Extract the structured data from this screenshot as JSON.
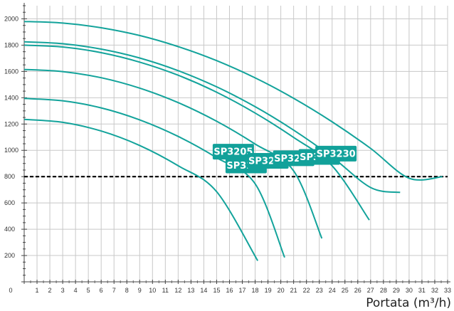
{
  "chart_data": {
    "type": "line",
    "title": "",
    "xlabel": "Portata (m³/h)",
    "ylabel": "",
    "xlim": [
      0,
      33
    ],
    "ylim": [
      0,
      2100
    ],
    "x_ticks": [
      0,
      1,
      2,
      3,
      4,
      5,
      6,
      7,
      8,
      9,
      10,
      11,
      12,
      13,
      14,
      15,
      16,
      17,
      18,
      19,
      20,
      21,
      22,
      23,
      24,
      25,
      26,
      27,
      28,
      29,
      30,
      31,
      32,
      33
    ],
    "y_ticks": [
      200,
      400,
      600,
      800,
      1000,
      1200,
      1400,
      1600,
      1800,
      2000
    ],
    "grid": true,
    "reference_line": {
      "y": 800,
      "style": "dashed",
      "color": "#000000"
    },
    "series_color": "#13a39b",
    "label_bg_color": "#12a19a",
    "series": [
      {
        "name": "SP3205",
        "x": [
          0,
          3,
          6,
          9,
          12,
          15,
          18.2
        ],
        "y": [
          1235,
          1213,
          1147,
          1037,
          883,
          685,
          160
        ]
      },
      {
        "name": "SP3208",
        "x": [
          0,
          3,
          6,
          9,
          12,
          15,
          18,
          20.3
        ],
        "y": [
          1395,
          1377,
          1323,
          1232,
          1106,
          944,
          746,
          185
        ]
      },
      {
        "name": "SP3211",
        "x": [
          0,
          3,
          6,
          9,
          12,
          15,
          18,
          21,
          23.2
        ],
        "y": [
          1615,
          1599,
          1552,
          1473,
          1363,
          1221,
          1048,
          844,
          330
        ]
      },
      {
        "name": "SP3216",
        "x": [
          0,
          3,
          6,
          9,
          12,
          15,
          18,
          21,
          24,
          26.9
        ],
        "y": [
          1800,
          1786,
          1743,
          1671,
          1571,
          1442,
          1284,
          1098,
          883,
          470
        ]
      },
      {
        "name": "SP3220",
        "x": [
          0,
          3,
          6,
          9,
          12,
          15,
          18,
          21,
          24,
          27,
          29.3
        ],
        "y": [
          1825,
          1811,
          1770,
          1702,
          1606,
          1483,
          1332,
          1154,
          949,
          717,
          680
        ]
      },
      {
        "name": "SP3230",
        "x": [
          0,
          3,
          6,
          9,
          12,
          15,
          18,
          21,
          24,
          27,
          30,
          32.6
        ],
        "y": [
          1980,
          1968,
          1932,
          1873,
          1789,
          1682,
          1551,
          1396,
          1217,
          1015,
          788,
          800
        ]
      }
    ],
    "curve_labels": [
      {
        "text": "SP3205",
        "x": 16.3,
        "y": 990
      },
      {
        "text": "SP3208",
        "x": 17.3,
        "y": 885
      },
      {
        "text": "SP3211",
        "x": 19.0,
        "y": 920
      },
      {
        "text": "SP3216",
        "x": 21.0,
        "y": 940
      },
      {
        "text": "SP3220",
        "x": 23.0,
        "y": 950
      },
      {
        "text": "SP3230",
        "x": 24.3,
        "y": 975
      }
    ]
  }
}
